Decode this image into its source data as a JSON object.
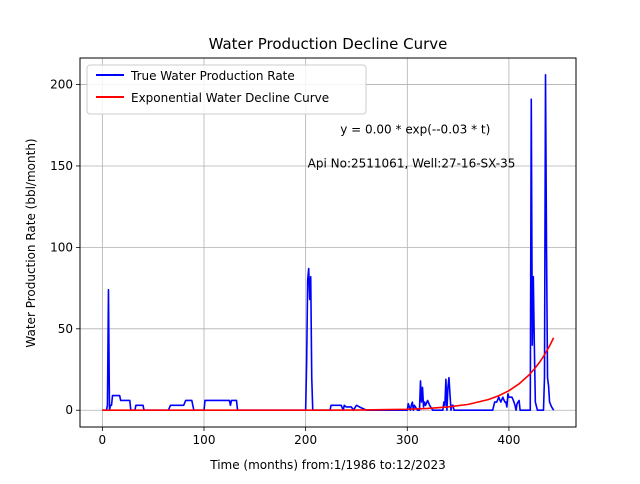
{
  "chart_data": {
    "type": "line",
    "title": "Water Production Decline Curve",
    "xlabel": "Time (months) from:1/1986 to:12/2023",
    "ylabel": "Water Production Rate (bbl/month)",
    "xlim": [
      -22,
      466
    ],
    "ylim": [
      -10.3,
      216.3
    ],
    "xticks": [
      0,
      100,
      200,
      300,
      400
    ],
    "yticks": [
      0,
      50,
      100,
      150,
      200
    ],
    "grid": true,
    "legend_position": "upper-left",
    "annotations": [
      {
        "text": "y = 0.00 * exp(--0.03 * t)",
        "x": 234,
        "y": 170
      },
      {
        "text": "Api No:2511061, Well:27-16-SX-35",
        "x": 202,
        "y": 149
      }
    ],
    "series": [
      {
        "name": "True Water Production Rate",
        "color": "#0000ff",
        "x": [
          0,
          4,
          5,
          6,
          7,
          8,
          9,
          10,
          13,
          15,
          17,
          18,
          20,
          25,
          27,
          28,
          32,
          33,
          35,
          40,
          41,
          43,
          45,
          60,
          65,
          67,
          70,
          80,
          82,
          87,
          88,
          90,
          100,
          101,
          105,
          110,
          120,
          125,
          126,
          127,
          129,
          130,
          132,
          133,
          135,
          150,
          160,
          200,
          201,
          202,
          203,
          204,
          205,
          206,
          207,
          208,
          209,
          220,
          224,
          225,
          235,
          237,
          238,
          240,
          245,
          247,
          250,
          253,
          260,
          270,
          280,
          290,
          300,
          301,
          303,
          304,
          305,
          306,
          307,
          310,
          312,
          313,
          314,
          315,
          316,
          317,
          318,
          320,
          322,
          325,
          330,
          333,
          335,
          336,
          337,
          338,
          339,
          340,
          341,
          342,
          343,
          344,
          345,
          346,
          347,
          348,
          350,
          352,
          355,
          360,
          365,
          370,
          375,
          378,
          380,
          382,
          384,
          386,
          388,
          390,
          392,
          394,
          396,
          397,
          398,
          399,
          400,
          403,
          405,
          406,
          407,
          408,
          410,
          411,
          412,
          413,
          414,
          415,
          416,
          417,
          418,
          419,
          420,
          421,
          422,
          423,
          424,
          425,
          426,
          428,
          430,
          431,
          432,
          433,
          434,
          435,
          436,
          437,
          438,
          439,
          440,
          442,
          444
        ],
        "values": [
          0,
          0,
          3,
          74,
          0,
          3,
          3,
          9,
          9,
          9,
          9,
          6,
          6,
          6,
          6,
          0,
          0,
          3,
          3,
          3,
          0,
          0,
          0,
          0,
          0,
          3,
          3,
          3,
          6,
          6,
          6,
          0,
          0,
          6,
          6,
          6,
          6,
          6,
          3,
          6,
          6,
          6,
          6,
          0,
          0,
          0,
          0,
          0,
          30,
          80,
          87,
          68,
          82,
          20,
          0,
          0,
          0,
          0,
          0,
          3,
          3,
          0,
          3,
          2,
          2,
          0,
          3,
          2,
          0,
          0,
          0,
          0,
          0,
          4,
          0,
          3,
          5,
          0,
          3,
          0,
          0,
          18,
          5,
          14,
          2,
          5,
          3,
          6,
          3,
          0,
          0,
          0,
          0,
          5,
          3,
          19,
          0,
          14,
          20,
          10,
          0,
          3,
          3,
          0,
          0,
          0,
          0,
          0,
          0,
          0,
          0,
          0,
          0,
          0,
          0,
          0,
          0,
          5,
          5,
          8,
          5,
          8,
          5,
          5,
          2,
          10,
          8,
          8,
          5,
          3,
          0,
          4,
          6,
          0,
          0,
          0,
          0,
          0,
          0,
          0,
          0,
          0,
          0,
          0,
          191,
          40,
          82,
          40,
          5,
          0,
          0,
          0,
          0,
          0,
          0,
          20,
          206,
          100,
          20,
          15,
          5,
          2,
          0
        ]
      },
      {
        "name": "Exponential Water Decline Curve",
        "color": "#ff0000",
        "x": [
          0,
          50,
          100,
          150,
          200,
          250,
          300,
          320,
          340,
          360,
          380,
          390,
          400,
          410,
          420,
          425,
          430,
          435,
          440,
          444
        ],
        "values": [
          0.0,
          0.0,
          0.0,
          0.0,
          0.0,
          0.1,
          0.6,
          1.1,
          2.0,
          3.6,
          6.6,
          8.9,
          12.0,
          16.2,
          21.8,
          25.3,
          29.3,
          34.0,
          39.5,
          44.5
        ]
      }
    ]
  }
}
